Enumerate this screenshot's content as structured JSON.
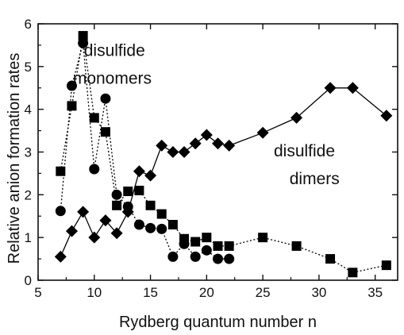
{
  "chart_data": {
    "type": "scatter",
    "title": "",
    "xlabel": "Rydberg quantum number n",
    "ylabel": "Relative anion formation rates",
    "xlim": [
      5,
      37
    ],
    "ylim": [
      0,
      6
    ],
    "x_ticks": [
      5,
      10,
      15,
      20,
      25,
      30,
      35
    ],
    "y_ticks": [
      0,
      1,
      2,
      3,
      4,
      5,
      6
    ],
    "grid": false,
    "legend": "none",
    "annotations": [
      {
        "text": "disulfide",
        "x": 11.8,
        "y": 5.25
      },
      {
        "text": "monomers",
        "x": 11.6,
        "y": 4.6
      },
      {
        "text": "disulfide",
        "x": 28.7,
        "y": 2.9
      },
      {
        "text": "dimers",
        "x": 29.6,
        "y": 2.25
      }
    ],
    "series": [
      {
        "marker": "square",
        "line": "dotted",
        "color": "#000000",
        "x": [
          7,
          8,
          9,
          10,
          11,
          12,
          13,
          14,
          15,
          16,
          17,
          18,
          19,
          20,
          21,
          22,
          25,
          28,
          31,
          33,
          36
        ],
        "y": [
          2.55,
          4.08,
          5.72,
          3.8,
          3.47,
          1.75,
          2.08,
          2.1,
          1.75,
          1.55,
          1.3,
          0.97,
          0.9,
          1.0,
          0.8,
          0.8,
          1.0,
          0.8,
          0.5,
          0.18,
          0.35
        ]
      },
      {
        "marker": "circle",
        "line": "dotted",
        "color": "#000000",
        "x": [
          7,
          8,
          9,
          10,
          11,
          12,
          13,
          14,
          15,
          16,
          17,
          18,
          19,
          20,
          21,
          22
        ],
        "y": [
          1.62,
          4.55,
          5.55,
          2.6,
          4.25,
          2.0,
          1.72,
          1.3,
          1.22,
          1.2,
          0.55,
          0.85,
          0.55,
          0.7,
          0.5,
          0.5
        ]
      },
      {
        "marker": "diamond",
        "line": "solid",
        "color": "#000000",
        "x": [
          7,
          8,
          9,
          10,
          11,
          12,
          13,
          14,
          15,
          16,
          17,
          18,
          19,
          20,
          21,
          22,
          25,
          28,
          31,
          33,
          36
        ],
        "y": [
          0.55,
          1.15,
          1.6,
          1.0,
          1.4,
          1.1,
          1.6,
          2.55,
          2.45,
          3.15,
          3.0,
          3.0,
          3.2,
          3.4,
          3.2,
          3.15,
          3.45,
          3.8,
          4.5,
          4.5,
          3.85
        ]
      }
    ]
  }
}
